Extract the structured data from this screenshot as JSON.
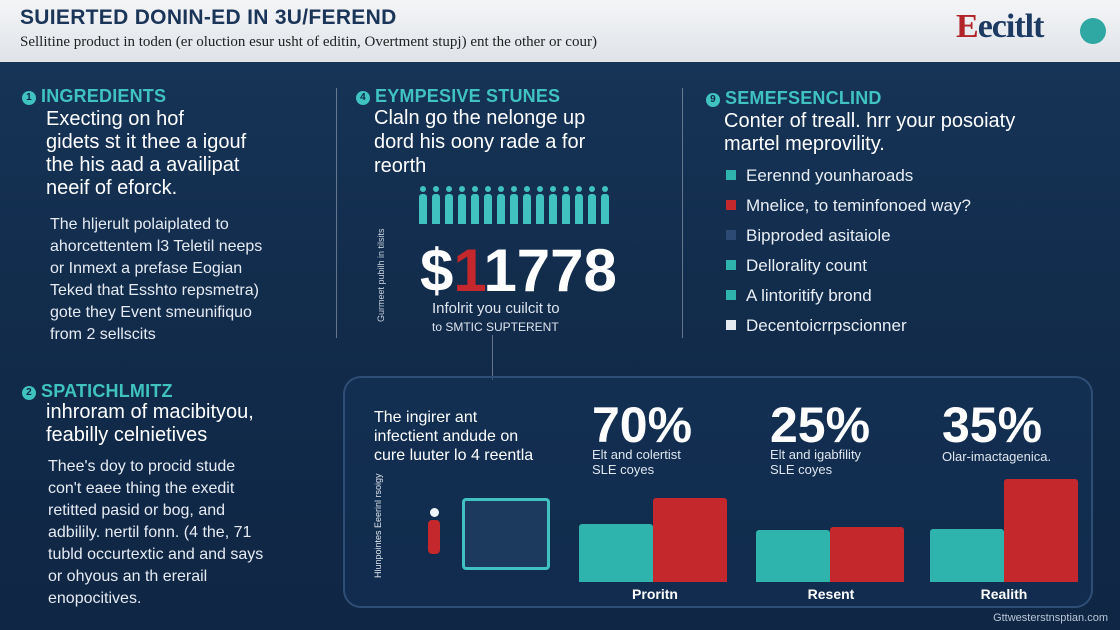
{
  "header": {
    "title": "SUIERTED DONIN-ED IN 3U/FEREND",
    "subtitle": "Sellitine product in toden (er oluction esur usht of editin, Overtment stupj) ent the other or cour)",
    "logo_text_red": "E",
    "logo_text_rest": "ecitlt"
  },
  "section1": {
    "num": "1",
    "heading": "INGREDIENTS",
    "lead": [
      "Execting on hof",
      "gidets st it thee a igouf",
      "the his aad a availipat",
      "neeif of eforck."
    ],
    "body": [
      "The hljerult polaiplated to",
      "ahorcettentem l3 Teletil neeps",
      "or Inmext a prefase Eogian",
      "Teked that Esshto repsmetra)",
      "gote they Event smeunifiquo",
      "from 2 sellscits"
    ]
  },
  "section2": {
    "num": "2",
    "heading": "SPATICHLMITZ",
    "lead": [
      "inhroram of macibityou,",
      "feabilly celnietives"
    ],
    "body": [
      "Thee's doy to procid stude",
      "con't eaee thing the exedit",
      "retitted pasid or bog, and",
      "adbilily. nertil fonn. (4 the, 71",
      "tubld occurtextic and and says",
      "or ohyous an th ererail",
      "enopocitives."
    ]
  },
  "section3": {
    "num": "4",
    "heading": "EYMPESIVE STUNES",
    "lead": [
      "Claln go the nelonge up",
      "dord his oony rade a for",
      "reorth"
    ],
    "big_prefix": "$",
    "big_accent": "1",
    "big_suffix": "1778",
    "caption": [
      "Infolrit you cuilcit to",
      "to SMTIC SUPTERENT"
    ],
    "vertical_label": "Gurmeet pubilh in tilsits"
  },
  "section4": {
    "num": "9",
    "heading": "SEMEFSENCLIND",
    "lead": [
      "Conter of treall. hrr your posoiaty",
      "martel meprovility."
    ],
    "items": [
      {
        "text": "Eerennd younharoads",
        "color": "#2fb3ad"
      },
      {
        "text": "Mnelice, to teminfonoed way?",
        "color": "#c4272c"
      },
      {
        "text": "Bipproded asitaiole",
        "color": "#2c4a73"
      },
      {
        "text": "Dellorality count",
        "color": "#2fb3ad"
      },
      {
        "text": "A lintoritify brond",
        "color": "#2fb3ad"
      },
      {
        "text": "Decentoicrrpscionner",
        "color": "#e6ebf2"
      }
    ]
  },
  "panel": {
    "intro": [
      "The ingirer ant",
      "infectient andude on",
      "cure luuter lo 4 reentla"
    ],
    "side_label": "Hlunpointes Eeerinl rsoigy",
    "stats": [
      {
        "pct": "70%",
        "label": [
          "Elt and colertist",
          "SLE coyes"
        ]
      },
      {
        "pct": "25%",
        "label": [
          "Elt and igabfility",
          "SLE coyes"
        ]
      },
      {
        "pct": "35%",
        "label": [
          "Olar-imactagenica."
        ]
      }
    ],
    "groups": [
      {
        "name": "Proritn",
        "teal": 0.5,
        "red": 0.72
      },
      {
        "name": "Resent",
        "teal": 0.45,
        "red": 0.47
      },
      {
        "name": "Realith",
        "teal": 0.46,
        "red": 0.89
      }
    ]
  },
  "credit": "Gttwesterstnsptian.com",
  "colors": {
    "teal": "#2fb3ad",
    "red": "#c4272c",
    "navy": "#122c4c"
  }
}
